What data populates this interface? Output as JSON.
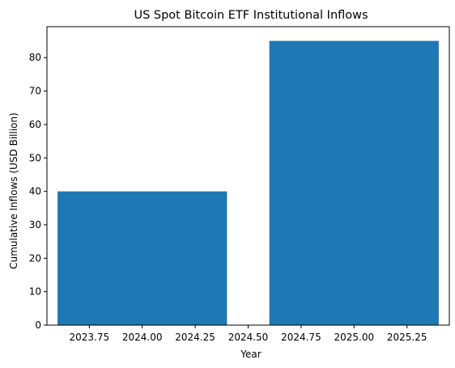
{
  "chart_data": {
    "type": "bar",
    "title": "US Spot Bitcoin ETF Institutional Inflows",
    "xlabel": "Year",
    "ylabel": "Cumulative Inflows (USD Billion)",
    "bar_color": "#1f77b4",
    "bars": [
      {
        "x": 2024,
        "width": 0.8,
        "value": 40
      },
      {
        "x": 2025,
        "width": 0.8,
        "value": 85
      }
    ],
    "xlim": [
      2023.55,
      2025.45
    ],
    "ylim": [
      0,
      89.25
    ],
    "x_ticks": [
      2023.75,
      2024.0,
      2024.25,
      2024.5,
      2024.75,
      2025.0,
      2025.25
    ],
    "x_tick_labels": [
      "2023.75",
      "2024.00",
      "2024.25",
      "2024.50",
      "2024.75",
      "2025.00",
      "2025.25"
    ],
    "y_ticks": [
      0,
      10,
      20,
      30,
      40,
      50,
      60,
      70,
      80
    ],
    "y_tick_labels": [
      "0",
      "10",
      "20",
      "30",
      "40",
      "50",
      "60",
      "70",
      "80"
    ],
    "grid": false,
    "legend": "none"
  }
}
